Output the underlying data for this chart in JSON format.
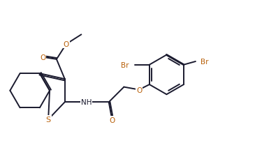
{
  "bg_color": "#ffffff",
  "bond_color": "#1a1a2e",
  "atom_colors": {
    "O": "#b8600a",
    "S": "#b8600a",
    "N": "#1a1a2e",
    "Br": "#b8600a",
    "C": "#1a1a2e"
  },
  "linewidth": 1.4,
  "font_size": 7.5,
  "aromatic_top_bond_color": "#1a1a2e"
}
